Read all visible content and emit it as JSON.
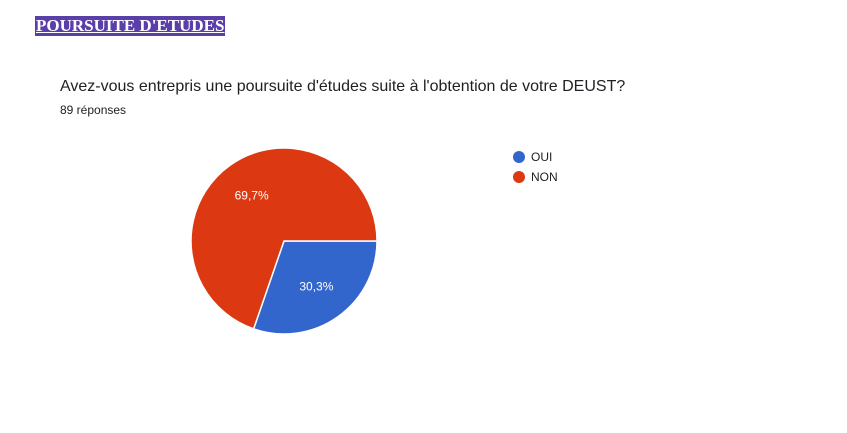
{
  "header": {
    "section_title": "POURSUITE D'ETUDES"
  },
  "question": {
    "text": "Avez-vous entrepris une poursuite d'études suite à l'obtention de votre DEUST?",
    "responses": "89 réponses"
  },
  "colors": {
    "banner": "#5b3fa8",
    "oui": "#3366cc",
    "non": "#dc3912"
  },
  "chart_data": {
    "type": "pie",
    "title": "",
    "categories": [
      "OUI",
      "NON"
    ],
    "values": [
      30.3,
      69.7
    ],
    "labels": [
      "30,3%",
      "69,7%"
    ],
    "colors": [
      "#3366cc",
      "#dc3912"
    ],
    "legend": "right",
    "start": "3 o'clock, clockwise"
  }
}
